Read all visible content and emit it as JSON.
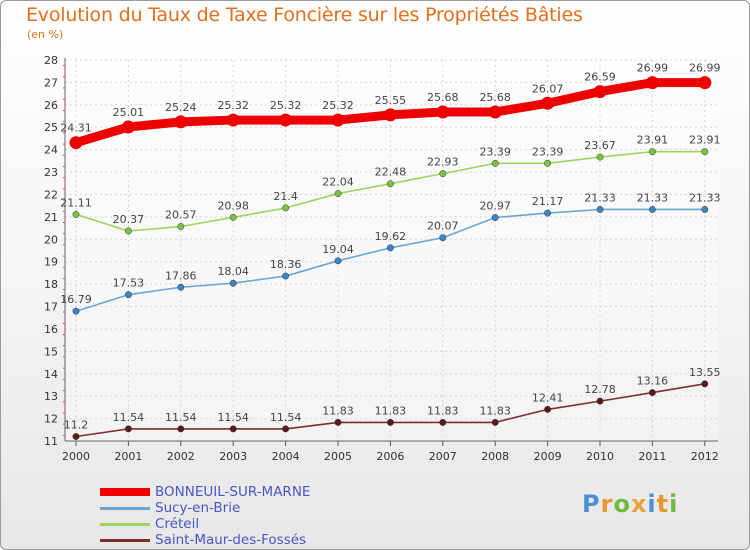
{
  "title": "Evolution du Taux de Taxe Foncière sur les Propriétés Bâties",
  "subtitle": "(en %)",
  "logo": {
    "text": "Proxiti",
    "colors": [
      "#4a8fd6",
      "#e9962a",
      "#73b843",
      "#e5a33a"
    ]
  },
  "chart_data": {
    "type": "line",
    "title": "Evolution du Taux de Taxe Foncière sur les Propriétés Bâties",
    "ylabel": "(en %)",
    "xlabel": "",
    "x": [
      "2000",
      "2001",
      "2002",
      "2003",
      "2004",
      "2005",
      "2006",
      "2007",
      "2008",
      "2009",
      "2010",
      "2011",
      "2012"
    ],
    "ylim": [
      11,
      28
    ],
    "yticks": [
      "11",
      "12",
      "13",
      "14",
      "15",
      "16",
      "17",
      "18",
      "19",
      "20",
      "21",
      "22",
      "23",
      "24",
      "25",
      "26",
      "27",
      "28"
    ],
    "grid": true,
    "legend": "bottom-left",
    "series": [
      {
        "name": "BONNEUIL-SUR-MARNE",
        "color": "#ee0000",
        "markerColor": "#cc0000",
        "thick": true,
        "values": [
          24.31,
          25.01,
          25.24,
          25.32,
          25.32,
          25.32,
          25.55,
          25.68,
          25.68,
          26.07,
          26.59,
          26.99,
          26.99
        ],
        "labels": [
          "24.31",
          "25.01",
          "25.24",
          "25.32",
          "25.32",
          "25.32",
          "25.55",
          "25.68",
          "25.68",
          "26.07",
          "26.59",
          "26.99",
          "26.99"
        ]
      },
      {
        "name": "Sucy-en-Brie",
        "color": "#6fa3d2",
        "markerColor": "#3d84c4",
        "thick": false,
        "values": [
          16.79,
          17.53,
          17.86,
          18.04,
          18.36,
          19.04,
          19.62,
          20.07,
          20.97,
          21.17,
          21.33,
          21.33,
          21.33
        ],
        "labels": [
          "16.79",
          "17.53",
          "17.86",
          "18.04",
          "18.36",
          "19.04",
          "19.62",
          "20.07",
          "20.97",
          "21.17",
          "21.33",
          "21.33",
          "21.33"
        ]
      },
      {
        "name": "Créteil",
        "color": "#9ed45e",
        "markerColor": "#7cc242",
        "thick": false,
        "values": [
          21.11,
          20.37,
          20.57,
          20.98,
          21.4,
          22.04,
          22.48,
          22.93,
          23.39,
          23.39,
          23.67,
          23.91,
          23.91
        ],
        "labels": [
          "21.11",
          "20.37",
          "20.57",
          "20.98",
          "21.4",
          "22.04",
          "22.48",
          "22.93",
          "23.39",
          "23.39",
          "23.67",
          "23.91",
          "23.91"
        ]
      },
      {
        "name": "Saint-Maur-des-Fossés",
        "color": "#7b2f2f",
        "markerColor": "#5a1a1a",
        "thick": false,
        "values": [
          11.2,
          11.54,
          11.54,
          11.54,
          11.54,
          11.83,
          11.83,
          11.83,
          11.83,
          12.41,
          12.78,
          13.16,
          13.55
        ],
        "labels": [
          "11.2",
          "11.54",
          "11.54",
          "11.54",
          "11.54",
          "11.83",
          "11.83",
          "11.83",
          "11.83",
          "12.41",
          "12.78",
          "13.16",
          "13.55"
        ]
      }
    ]
  }
}
